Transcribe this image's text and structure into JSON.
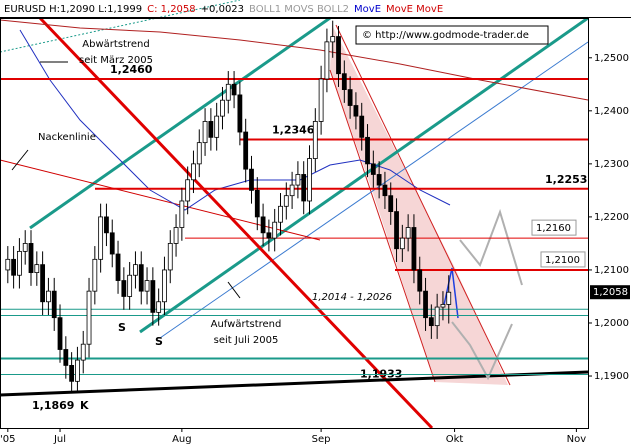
{
  "chart_data": {
    "type": "candlestick",
    "header": [
      {
        "text": "EURUSD H:1,2090 L:1,1999",
        "color": "#000000"
      },
      {
        "text": "C: 1,2058",
        "color": "#d00000"
      },
      {
        "text": "+0,0023",
        "color": "#000000"
      },
      {
        "text": "BOLL1 MOVS BOLL2",
        "color": "#9a9a9a"
      },
      {
        "text": "MovE",
        "color": "#0000cc"
      },
      {
        "text": "MovE MovE",
        "color": "#d00000"
      }
    ],
    "copyright": "© http://www.godmode-trader.de",
    "x": [
      0,
      1,
      2,
      3,
      4,
      5,
      6,
      7,
      8,
      9,
      10,
      11,
      12,
      13,
      14,
      15,
      16,
      17,
      18,
      19,
      20,
      21,
      22,
      23,
      24,
      25,
      26,
      27,
      28,
      29,
      30,
      31,
      32,
      33,
      34,
      35,
      36,
      37,
      38,
      39,
      40,
      41,
      42,
      43,
      44,
      45,
      46,
      47,
      48,
      49,
      50,
      51,
      52,
      53,
      54,
      55,
      56,
      57,
      58,
      59,
      60,
      61,
      62,
      63,
      64,
      65,
      66,
      67,
      68,
      69,
      70,
      71,
      72,
      73,
      74,
      75,
      76
    ],
    "open": [
      1.21,
      1.212,
      1.209,
      1.2135,
      1.215,
      1.2095,
      1.211,
      1.204,
      1.206,
      1.201,
      1.195,
      1.192,
      1.189,
      1.193,
      1.196,
      1.206,
      1.212,
      1.22,
      1.217,
      1.213,
      1.208,
      1.205,
      1.209,
      1.211,
      1.206,
      1.208,
      1.202,
      1.204,
      1.21,
      1.215,
      1.218,
      1.223,
      1.227,
      1.23,
      1.234,
      1.238,
      1.235,
      1.239,
      1.242,
      1.245,
      1.243,
      1.236,
      1.229,
      1.225,
      1.22,
      1.217,
      1.216,
      1.219,
      1.222,
      1.224,
      1.226,
      1.228,
      1.223,
      1.231,
      1.238,
      1.246,
      1.253,
      1.254,
      1.247,
      1.244,
      1.241,
      1.239,
      1.235,
      1.23,
      1.228,
      1.226,
      1.224,
      1.221,
      1.214,
      1.216,
      1.218,
      1.21,
      1.206,
      1.201,
      1.1995,
      1.203,
      1.2035
    ],
    "high": [
      1.2145,
      1.2145,
      1.216,
      1.2175,
      1.2175,
      1.2135,
      1.2135,
      1.2085,
      1.2085,
      1.2035,
      1.1975,
      1.1945,
      1.1955,
      1.1985,
      1.2085,
      1.2145,
      1.2225,
      1.2225,
      1.2195,
      1.2155,
      1.2105,
      1.2115,
      1.2135,
      1.2135,
      1.2105,
      1.2105,
      1.2065,
      1.2125,
      1.2175,
      1.2205,
      1.2255,
      1.2295,
      1.2325,
      1.2365,
      1.2405,
      1.2405,
      1.2415,
      1.2445,
      1.2475,
      1.2475,
      1.2455,
      1.2385,
      1.2315,
      1.2275,
      1.2225,
      1.2195,
      1.2215,
      1.2245,
      1.2265,
      1.2285,
      1.2305,
      1.2305,
      1.2335,
      1.2405,
      1.2485,
      1.2555,
      1.257,
      1.256,
      1.2495,
      1.2465,
      1.2435,
      1.2415,
      1.2375,
      1.2325,
      1.2305,
      1.2285,
      1.2265,
      1.2235,
      1.2185,
      1.2205,
      1.2205,
      1.2125,
      1.2085,
      1.2035,
      1.2055,
      1.206,
      1.209
    ],
    "low": [
      1.2075,
      1.2065,
      1.2065,
      1.211,
      1.207,
      1.207,
      1.2015,
      1.2015,
      1.1985,
      1.1925,
      1.1895,
      1.1869,
      1.187,
      1.1905,
      1.1935,
      1.2035,
      1.2095,
      1.2145,
      1.2105,
      1.2055,
      1.2025,
      1.2025,
      1.2065,
      1.2035,
      1.2035,
      1.1995,
      1.1995,
      1.2015,
      1.2075,
      1.2125,
      1.2155,
      1.2205,
      1.2245,
      1.2275,
      1.2315,
      1.2325,
      1.2325,
      1.2365,
      1.2395,
      1.2405,
      1.2335,
      1.2265,
      1.2225,
      1.2175,
      1.2145,
      1.2135,
      1.2135,
      1.2165,
      1.2195,
      1.2215,
      1.2235,
      1.2205,
      1.2205,
      1.2285,
      1.2355,
      1.2435,
      1.25,
      1.2445,
      1.2415,
      1.2385,
      1.2365,
      1.2325,
      1.2275,
      1.2255,
      1.2235,
      1.2215,
      1.2185,
      1.2115,
      1.2115,
      1.2135,
      1.2075,
      1.2035,
      1.1985,
      1.197,
      1.197,
      1.2005,
      1.1999
    ],
    "close": [
      1.212,
      1.209,
      1.2135,
      1.215,
      1.2095,
      1.211,
      1.204,
      1.206,
      1.201,
      1.195,
      1.192,
      1.189,
      1.193,
      1.196,
      1.206,
      1.212,
      1.22,
      1.217,
      1.213,
      1.208,
      1.205,
      1.209,
      1.211,
      1.206,
      1.208,
      1.202,
      1.204,
      1.21,
      1.215,
      1.218,
      1.223,
      1.227,
      1.23,
      1.234,
      1.238,
      1.235,
      1.239,
      1.242,
      1.245,
      1.243,
      1.236,
      1.229,
      1.225,
      1.22,
      1.217,
      1.216,
      1.219,
      1.222,
      1.224,
      1.226,
      1.228,
      1.223,
      1.231,
      1.238,
      1.246,
      1.253,
      1.254,
      1.247,
      1.244,
      1.241,
      1.239,
      1.235,
      1.23,
      1.228,
      1.226,
      1.224,
      1.221,
      1.214,
      1.216,
      1.218,
      1.21,
      1.206,
      1.201,
      1.1995,
      1.203,
      1.2035,
      1.2058
    ],
    "xlim": [
      -1,
      100
    ],
    "xticks": [
      {
        "value": 0,
        "label": "'05"
      },
      {
        "value": 9,
        "label": "Jul"
      },
      {
        "value": 30,
        "label": "Aug"
      },
      {
        "value": 54,
        "label": "Sep"
      },
      {
        "value": 77,
        "label": "Okt"
      },
      {
        "value": 98,
        "label": "Nov"
      }
    ],
    "ylim": [
      1.1802,
      1.2575
    ],
    "yticks": [
      {
        "value": 1.19,
        "label": "1,1900"
      },
      {
        "value": 1.2,
        "label": "1,2000"
      },
      {
        "value": 1.21,
        "label": "1,2100"
      },
      {
        "value": 1.22,
        "label": "1,2200"
      },
      {
        "value": 1.23,
        "label": "1,2300"
      },
      {
        "value": 1.24,
        "label": "1,2400"
      },
      {
        "value": 1.25,
        "label": "1,2500"
      }
    ],
    "last_price": {
      "value": 1.2058,
      "label": "1,2058"
    },
    "levels": [
      {
        "value": 1.246,
        "label": "1,2460",
        "color": "#e00000"
      },
      {
        "value": 1.2346,
        "label": "1,2346",
        "color": "#e00000"
      },
      {
        "value": 1.2253,
        "label": "1,2253",
        "color": "#e00000"
      },
      {
        "value": 1.216,
        "label": "1,2160",
        "color": "#e00000"
      },
      {
        "value": 1.21,
        "label": "1,2100",
        "color": "#e00000"
      },
      {
        "value": 1.1933,
        "label": "1,1933",
        "color": "#1a9a8a"
      }
    ],
    "range": {
      "values": [
        1.2014,
        1.2026
      ],
      "label": "1,2014 - 1,2026",
      "color": "#1a9a8a"
    },
    "low_mark": {
      "value": 1.1869,
      "label": "1,1869"
    },
    "annotations": [
      "Abwärtstrend",
      "seit März 2005",
      "Nackenlinie",
      "Aufwärtstrend",
      "seit Juli 2005",
      "S",
      "S",
      "K"
    ]
  }
}
